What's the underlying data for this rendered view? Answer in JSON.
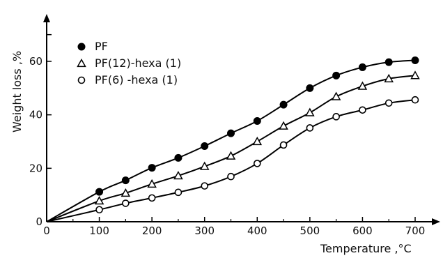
{
  "chart_data": {
    "type": "line",
    "title": "",
    "xlabel": "Temperature ,°C",
    "ylabel": "Weight loss ,%",
    "xlim": [
      0,
      700
    ],
    "ylim": [
      0,
      70
    ],
    "x_ticks": [
      0,
      100,
      200,
      300,
      400,
      500,
      600,
      700
    ],
    "y_ticks": [
      0,
      20,
      40,
      60
    ],
    "grid": false,
    "legend_position": "top-left",
    "series": [
      {
        "name": "PF",
        "marker": "filled-circle",
        "x": [
          0,
          100,
          150,
          200,
          250,
          300,
          350,
          400,
          450,
          500,
          550,
          600,
          650,
          700
        ],
        "y": [
          0,
          11.2,
          15.5,
          20.2,
          23.9,
          28.3,
          33.1,
          37.7,
          43.8,
          50.0,
          54.7,
          57.8,
          59.7,
          60.4
        ]
      },
      {
        "name": "PF(12)-hexa (1)",
        "marker": "open-triangle",
        "x": [
          0,
          100,
          150,
          200,
          250,
          300,
          350,
          400,
          450,
          500,
          550,
          600,
          650,
          700
        ],
        "y": [
          0,
          7.8,
          10.7,
          14.1,
          17.2,
          20.7,
          24.6,
          30.0,
          35.8,
          40.8,
          46.8,
          50.7,
          53.5,
          54.7
        ]
      },
      {
        "name": "PF(6) -hexa (1)",
        "marker": "open-circle",
        "x": [
          0,
          100,
          150,
          200,
          250,
          300,
          350,
          400,
          450,
          500,
          550,
          600,
          650,
          700
        ],
        "y": [
          0,
          4.5,
          6.9,
          8.9,
          11.0,
          13.4,
          16.9,
          21.8,
          28.7,
          35.1,
          39.3,
          41.8,
          44.4,
          45.6
        ]
      }
    ]
  }
}
